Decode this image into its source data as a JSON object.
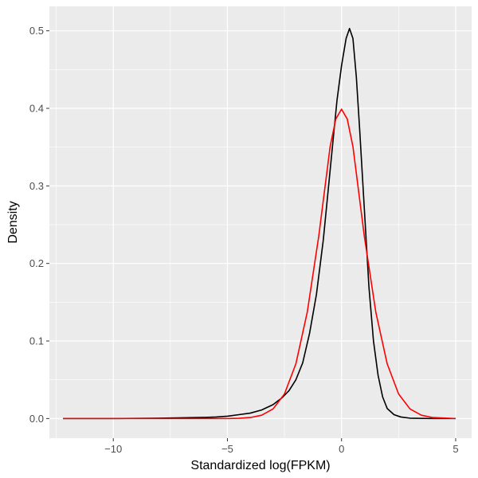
{
  "chart_data": {
    "type": "line",
    "xlabel": "Standardized log(FPKM)",
    "ylabel": "Density",
    "xlim": [
      -12.8,
      5.7
    ],
    "ylim": [
      -0.0253,
      0.5315
    ],
    "x_ticks": [
      {
        "value": -10,
        "label": "−10"
      },
      {
        "value": -5,
        "label": "−5"
      },
      {
        "value": 0,
        "label": "0"
      },
      {
        "value": 5,
        "label": "5"
      }
    ],
    "y_ticks": [
      {
        "value": 0.0,
        "label": "0.0"
      },
      {
        "value": 0.1,
        "label": "0.1"
      },
      {
        "value": 0.2,
        "label": "0.2"
      },
      {
        "value": 0.3,
        "label": "0.3"
      },
      {
        "value": 0.4,
        "label": "0.4"
      },
      {
        "value": 0.5,
        "label": "0.5"
      }
    ],
    "grid": true,
    "background": "#ebebeb",
    "series": [
      {
        "color": "#000000",
        "x": [
          -12.2,
          -10,
          -8,
          -7,
          -6,
          -5.5,
          -5,
          -4.5,
          -4.0,
          -3.5,
          -3.0,
          -2.6,
          -2.3,
          -2.0,
          -1.7,
          -1.4,
          -1.1,
          -0.8,
          -0.5,
          -0.2,
          0.0,
          0.2,
          0.35,
          0.5,
          0.65,
          0.8,
          1.0,
          1.2,
          1.4,
          1.6,
          1.8,
          2.0,
          2.3,
          2.6,
          3.0,
          4.0,
          5.0
        ],
        "y": [
          0.0,
          0.0,
          0.0005,
          0.001,
          0.0015,
          0.002,
          0.003,
          0.005,
          0.007,
          0.011,
          0.018,
          0.027,
          0.036,
          0.05,
          0.072,
          0.11,
          0.16,
          0.23,
          0.32,
          0.41,
          0.455,
          0.49,
          0.503,
          0.49,
          0.44,
          0.37,
          0.27,
          0.17,
          0.1,
          0.056,
          0.028,
          0.013,
          0.005,
          0.002,
          0.0005,
          0.0,
          0.0
        ]
      },
      {
        "color": "#ff0000",
        "x": [
          -12.2,
          -10,
          -8,
          -7,
          -6,
          -5,
          -4.5,
          -4.0,
          -3.5,
          -3.0,
          -2.5,
          -2.0,
          -1.5,
          -1.0,
          -0.5,
          -0.25,
          0.0,
          0.25,
          0.5,
          1.0,
          1.5,
          2.0,
          2.5,
          3.0,
          3.5,
          4.0,
          5.0
        ],
        "y": [
          0.0,
          0.0,
          0.0,
          0.0,
          0.0,
          0.0,
          0.0003,
          0.0013,
          0.0043,
          0.0124,
          0.0317,
          0.0706,
          0.1375,
          0.2347,
          0.3506,
          0.3863,
          0.3989,
          0.3863,
          0.3506,
          0.2347,
          0.1375,
          0.0706,
          0.0317,
          0.0124,
          0.0043,
          0.0013,
          0.0
        ]
      }
    ]
  }
}
